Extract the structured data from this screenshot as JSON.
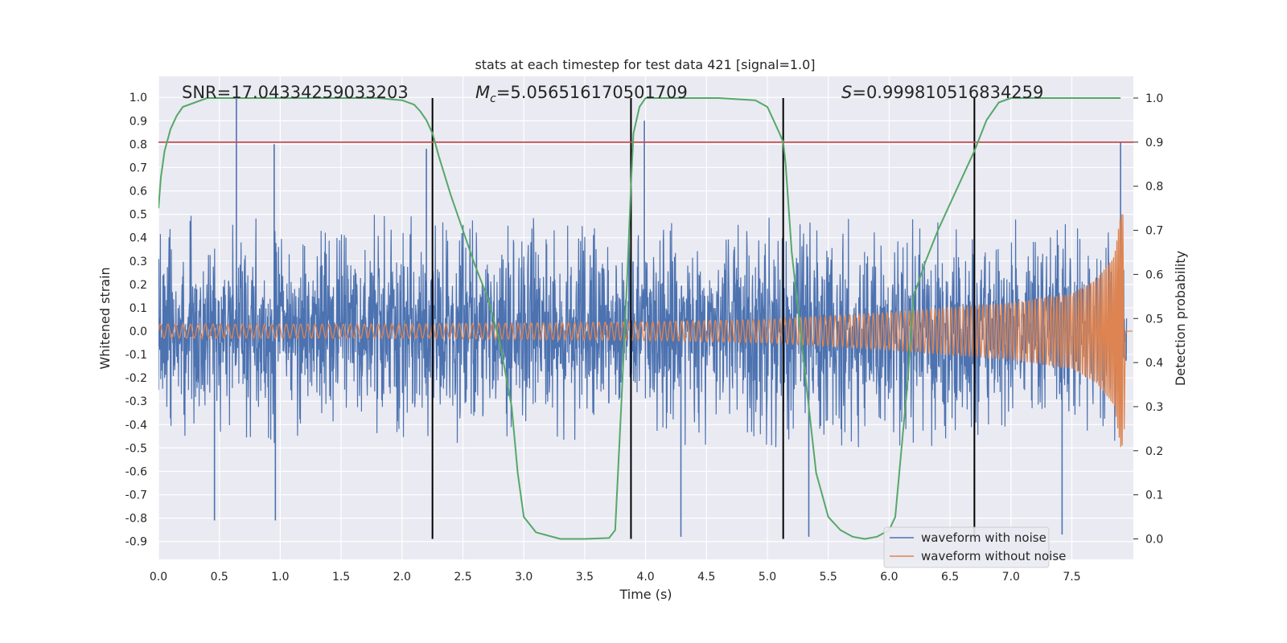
{
  "chart_data": {
    "type": "line",
    "title": "stats at each timestep for test data 421 [signal=1.0]",
    "xlabel": "Time (s)",
    "ylabel": "Whitened strain",
    "y2label": "Detection probability",
    "xlim": [
      0.0,
      8.0
    ],
    "ylim": [
      -1.0,
      1.07
    ],
    "y2lim": [
      -0.045,
      1.07
    ],
    "x_ticks": [
      "0.0",
      "0.5",
      "1.0",
      "1.5",
      "2.0",
      "2.5",
      "3.0",
      "3.5",
      "4.0",
      "4.5",
      "5.0",
      "5.5",
      "6.0",
      "6.5",
      "7.0",
      "7.5"
    ],
    "y_ticks": [
      "1.0",
      "0.9",
      "0.8",
      "0.7",
      "0.6",
      "0.5",
      "0.4",
      "0.3",
      "0.2",
      "0.1",
      "0.0",
      "-0.1",
      "-0.2",
      "-0.3",
      "-0.4",
      "-0.5",
      "-0.6",
      "-0.7",
      "-0.8",
      "-0.9"
    ],
    "y2_ticks": [
      "1.0",
      "0.9",
      "0.8",
      "0.7",
      "0.6",
      "0.5",
      "0.4",
      "0.3",
      "0.2",
      "0.1",
      "0.0"
    ],
    "grid": true,
    "legend_position": "bottom-right",
    "annotations": {
      "snr": "SNR=17.04334259033203",
      "mc_symbol": "M",
      "mc_sub": "c",
      "mc_value": "=5.056516170501709",
      "s_symbol": "S",
      "s_value": "=0.999810516834259"
    },
    "colors": {
      "noise": "#4c72b0",
      "clean": "#dd8452",
      "probability": "#55a868",
      "threshold": "#c44e52",
      "marker": "#000000",
      "background": "#eaeaf2"
    },
    "threshold_y2": 0.9,
    "vertical_markers_x": [
      2.25,
      3.88,
      5.13,
      6.7
    ],
    "noise_envelope": {
      "typical_max": 0.5,
      "typical_min": -0.5,
      "spikes": [
        {
          "x": 0.64,
          "y": 1.0
        },
        {
          "x": 0.95,
          "y": 0.8
        },
        {
          "x": 2.2,
          "y": 0.78
        },
        {
          "x": 3.99,
          "y": 0.9
        },
        {
          "x": 7.9,
          "y": 0.81
        },
        {
          "x": 0.46,
          "y": -0.81
        },
        {
          "x": 0.96,
          "y": -0.81
        },
        {
          "x": 4.29,
          "y": -0.88
        },
        {
          "x": 5.34,
          "y": -0.88
        },
        {
          "x": 7.42,
          "y": -0.87
        }
      ]
    },
    "clean_envelope": [
      {
        "x": 0.0,
        "y": 0.03
      },
      {
        "x": 2.0,
        "y": 0.03
      },
      {
        "x": 4.0,
        "y": 0.04
      },
      {
        "x": 5.0,
        "y": 0.05
      },
      {
        "x": 6.0,
        "y": 0.08
      },
      {
        "x": 7.0,
        "y": 0.12
      },
      {
        "x": 7.5,
        "y": 0.16
      },
      {
        "x": 7.7,
        "y": 0.22
      },
      {
        "x": 7.85,
        "y": 0.32
      },
      {
        "x": 7.9,
        "y": 0.5
      }
    ],
    "series": [
      {
        "name": "waveform with noise",
        "role": "noise"
      },
      {
        "name": "waveform without noise",
        "role": "clean"
      },
      {
        "role": "probability",
        "x": [
          0.0,
          0.02,
          0.05,
          0.1,
          0.15,
          0.2,
          0.3,
          0.4,
          0.6,
          1.0,
          1.5,
          1.8,
          2.0,
          2.1,
          2.15,
          2.2,
          2.25,
          2.3,
          2.4,
          2.5,
          2.6,
          2.7,
          2.8,
          2.9,
          2.95,
          3.0,
          3.1,
          3.3,
          3.5,
          3.7,
          3.75,
          3.8,
          3.85,
          3.88,
          3.9,
          3.95,
          4.0,
          4.2,
          4.6,
          4.9,
          5.0,
          5.05,
          5.1,
          5.13,
          5.15,
          5.2,
          5.3,
          5.4,
          5.5,
          5.6,
          5.7,
          5.8,
          5.9,
          6.0,
          6.05,
          6.1,
          6.15,
          6.2,
          6.3,
          6.4,
          6.5,
          6.6,
          6.7,
          6.8,
          6.9,
          7.0,
          7.5,
          7.9
        ],
        "y": [
          0.75,
          0.82,
          0.88,
          0.93,
          0.96,
          0.98,
          0.99,
          1.0,
          1.0,
          1.0,
          1.0,
          1.0,
          0.995,
          0.985,
          0.97,
          0.95,
          0.92,
          0.87,
          0.78,
          0.7,
          0.62,
          0.55,
          0.45,
          0.3,
          0.15,
          0.05,
          0.015,
          0.0,
          0.0,
          0.002,
          0.02,
          0.3,
          0.6,
          0.8,
          0.92,
          0.98,
          1.0,
          1.0,
          1.0,
          0.995,
          0.98,
          0.95,
          0.92,
          0.9,
          0.85,
          0.65,
          0.4,
          0.15,
          0.05,
          0.02,
          0.005,
          0.0,
          0.005,
          0.02,
          0.05,
          0.2,
          0.35,
          0.55,
          0.63,
          0.7,
          0.76,
          0.82,
          0.88,
          0.95,
          0.99,
          1.0,
          1.0,
          1.0
        ]
      }
    ]
  }
}
